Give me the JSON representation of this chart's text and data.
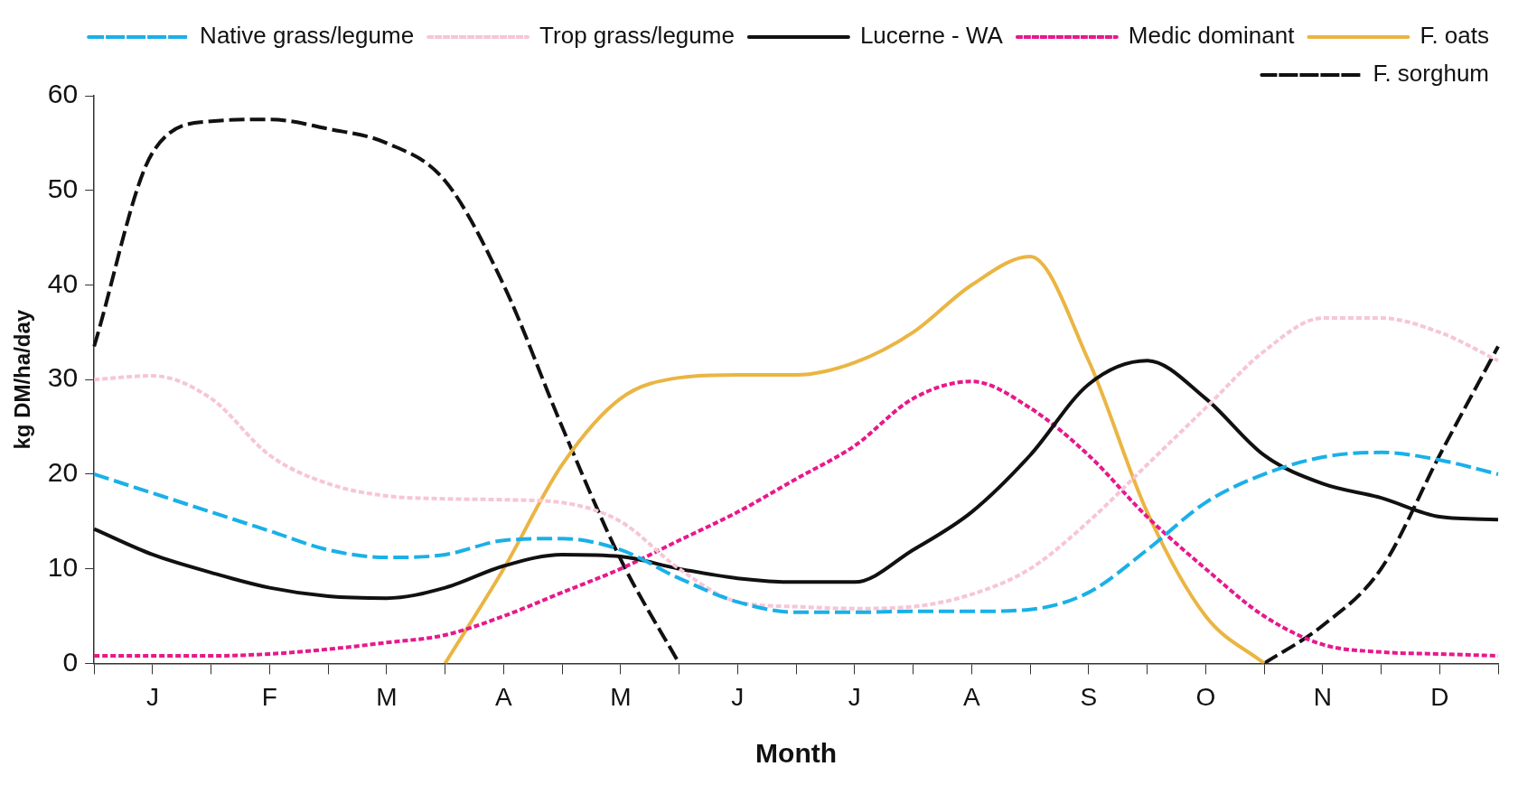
{
  "chart_data": {
    "type": "line",
    "xlabel": "Month",
    "ylabel": "kg DM/ha/day",
    "categories": [
      null,
      "J",
      null,
      "F",
      null,
      "M",
      null,
      "A",
      null,
      "M",
      null,
      "J",
      null,
      "J",
      null,
      "A",
      null,
      "S",
      null,
      "O",
      null,
      "N",
      null,
      "D",
      null
    ],
    "ylim": [
      0,
      60
    ],
    "yticks": [
      0,
      10,
      20,
      30,
      40,
      50,
      60
    ],
    "grid": false,
    "legend": "top right",
    "marker": "none",
    "series": [
      {
        "name": "Native grass/legume",
        "color": "#1ab0e8",
        "line_style": "dashed",
        "values": [
          20,
          18,
          16,
          14,
          12,
          11.2,
          11.5,
          13,
          13.2,
          12,
          9,
          6.5,
          5.4,
          5.4,
          5.5,
          5.5,
          5.7,
          7.5,
          12,
          17,
          20,
          21.8,
          22.3,
          21.5,
          20
        ]
      },
      {
        "name": "Trop grass/legume",
        "color": "#f7c6d6",
        "line_style": "dotted",
        "values": [
          30,
          30.4,
          28,
          22,
          19,
          17.7,
          17.4,
          17.3,
          17,
          15,
          10,
          6.5,
          6,
          5.8,
          6,
          7.3,
          10,
          15,
          21,
          27,
          33,
          36.5,
          36.5,
          35,
          32
        ]
      },
      {
        "name": "Lucerne - WA",
        "color": "#111111",
        "line_style": "solid",
        "values": [
          14.2,
          11.5,
          9.6,
          8,
          7.1,
          6.9,
          8,
          10.3,
          11.5,
          11.3,
          10,
          9,
          8.6,
          8.6,
          12,
          16,
          22,
          29.5,
          32,
          28,
          22,
          19,
          17.5,
          15.5,
          15.2
        ]
      },
      {
        "name": "Medic dominant",
        "color": "#e6198c",
        "line_style": "dotted",
        "values": [
          0.8,
          0.8,
          0.8,
          1,
          1.5,
          2.2,
          3,
          5,
          7.5,
          10,
          13,
          16,
          19.5,
          23,
          28,
          29.8,
          27,
          22,
          15.5,
          10,
          5,
          2,
          1.2,
          1,
          0.8
        ]
      },
      {
        "name": "F. oats",
        "color": "#eab543",
        "line_style": "solid",
        "values": [
          null,
          null,
          null,
          null,
          null,
          null,
          0,
          10,
          21,
          28,
          30.2,
          30.5,
          30.5,
          31.8,
          35,
          40,
          43,
          32,
          16,
          5,
          0,
          null,
          null,
          null,
          null
        ]
      },
      {
        "name": "F. sorghum",
        "color": "#111111",
        "line_style": "dashed",
        "values": [
          33.5,
          54,
          57.3,
          57.5,
          56.5,
          55,
          51,
          40,
          25,
          11,
          0,
          null,
          null,
          null,
          null,
          null,
          null,
          null,
          null,
          null,
          0,
          4,
          10,
          22,
          33.5
        ]
      }
    ]
  }
}
